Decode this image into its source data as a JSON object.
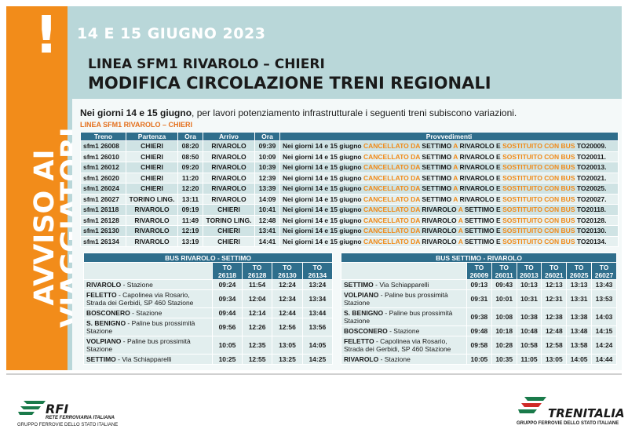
{
  "header": {
    "date_banner": "14 E 15 GIUGNO 2023",
    "line_title": "LINEA SFM1 RIVAROLO – CHIERI",
    "main_title": "MODIFICA CIRCOLAZIONE TRENI REGIONALI",
    "side_text_line1": "AVVISO AI",
    "side_text_line2": "VIAGGIATORI",
    "alert_mark": "!"
  },
  "intro": {
    "bold": "Nei giorni 14 e 15 giugno",
    "rest": ", per lavori potenziamento infrastrutturale i seguenti treni subiscono variazioni."
  },
  "section_label": "LINEA SFM1 RIVAROLO – CHIERI",
  "trains_table": {
    "headers": [
      "Treno",
      "Partenza",
      "Ora",
      "Arrivo",
      "Ora",
      "Provvedimenti"
    ],
    "rows": [
      {
        "treno": "sfm1 26008",
        "partenza": "CHIERI",
        "ora_p": "08:20",
        "arrivo": "RIVAROLO",
        "ora_a": "09:39",
        "p1": "Nei giorni 14 e 15 giugno ",
        "p2": "CANCELLATO DA ",
        "p3": "SETTIMO",
        "p4": " A ",
        "p5": "RIVAROLO",
        "p6": " E ",
        "p7": "SOSTITUITO CON BUS",
        "p8": " TO20009."
      },
      {
        "treno": "sfm1 26010",
        "partenza": "CHIERI",
        "ora_p": "08:50",
        "arrivo": "RIVAROLO",
        "ora_a": "10:09",
        "p1": "Nei giorni 14 e 15 giugno ",
        "p2": "CANCELLATO DA ",
        "p3": "SETTIMO",
        "p4": " A ",
        "p5": "RIVAROLO",
        "p6": " E ",
        "p7": "SOSTITUITO CON BUS",
        "p8": " TO20011."
      },
      {
        "treno": "sfm1 26012",
        "partenza": "CHIERI",
        "ora_p": "09:20",
        "arrivo": "RIVAROLO",
        "ora_a": "10:39",
        "p1": "Nei giorni 14 e 15 giugno ",
        "p2": "CANCELLATO DA ",
        "p3": "SETTIMO",
        "p4": " A ",
        "p5": "RIVAROLO",
        "p6": " E ",
        "p7": "SOSTITUITO CON BUS",
        "p8": " TO20013."
      },
      {
        "treno": "sfm1 26020",
        "partenza": "CHIERI",
        "ora_p": "11:20",
        "arrivo": "RIVAROLO",
        "ora_a": "12:39",
        "p1": "Nei giorni 14 e 15 giugno ",
        "p2": "CANCELLATO DA ",
        "p3": "SETTIMO",
        "p4": " A ",
        "p5": "RIVAROLO",
        "p6": " E ",
        "p7": "SOSTITUITO CON BUS",
        "p8": " TO20021."
      },
      {
        "treno": "sfm1 26024",
        "partenza": "CHIERI",
        "ora_p": "12:20",
        "arrivo": "RIVAROLO",
        "ora_a": "13:39",
        "p1": "Nei giorni 14 e 15 giugno ",
        "p2": "CANCELLATO DA ",
        "p3": "SETTIMO",
        "p4": " A ",
        "p5": "RIVAROLO",
        "p6": " E ",
        "p7": "SOSTITUITO CON BUS",
        "p8": " TO20025."
      },
      {
        "treno": "sfm1 26027",
        "partenza": "TORINO LING.",
        "ora_p": "13:11",
        "arrivo": "RIVAROLO",
        "ora_a": "14:09",
        "p1": "Nei giorni 14 e 15 giugno ",
        "p2": "CANCELLATO DA ",
        "p3": "SETTIMO",
        "p4": " A ",
        "p5": "RIVAROLO",
        "p6": " E ",
        "p7": "SOSTITUITO CON BUS",
        "p8": " TO20027."
      },
      {
        "treno": "sfm1 26118",
        "partenza": "RIVAROLO",
        "ora_p": "09:19",
        "arrivo": "CHIERI",
        "ora_a": "10:41",
        "p1": "Nei giorni 14 e 15 giugno ",
        "p2": "CANCELLATO DA ",
        "p3": "RIVAROLO",
        "p4": " A ",
        "p5": "SETTIMO",
        "p6": " E ",
        "p7": "SOSTITUITO CON BUS",
        "p8": " TO20118."
      },
      {
        "treno": "sfm1 26128",
        "partenza": "RIVAROLO",
        "ora_p": "11:49",
        "arrivo": "TORINO LING.",
        "ora_a": "12:48",
        "p1": "Nei giorni 14 e 15 giugno ",
        "p2": "CANCELLATO DA ",
        "p3": "RIVAROLO",
        "p4": " A ",
        "p5": "SETTIMO",
        "p6": " E ",
        "p7": "SOSTITUITO CON BUS",
        "p8": " TO20128."
      },
      {
        "treno": "sfm1 26130",
        "partenza": "RIVAROLO",
        "ora_p": "12:19",
        "arrivo": "CHIERI",
        "ora_a": "13:41",
        "p1": "Nei giorni 14 e 15 giugno ",
        "p2": "CANCELLATO DA ",
        "p3": "RIVAROLO",
        "p4": " A ",
        "p5": "SETTIMO",
        "p6": " E ",
        "p7": "SOSTITUITO CON BUS",
        "p8": " TO20130."
      },
      {
        "treno": "sfm1 26134",
        "partenza": "RIVAROLO",
        "ora_p": "13:19",
        "arrivo": "CHIERI",
        "ora_a": "14:41",
        "p1": "Nei giorni 14 e 15 giugno ",
        "p2": "CANCELLATO DA ",
        "p3": "RIVAROLO",
        "p4": " A ",
        "p5": "SETTIMO",
        "p6": " E ",
        "p7": "SOSTITUITO CON BUS",
        "p8": " TO20134."
      }
    ]
  },
  "bus_left": {
    "title": "BUS RIVAROLO - SETTIMO",
    "columns": [
      "TO 26118",
      "TO 26128",
      "TO 26130",
      "TO 26134"
    ],
    "rows": [
      {
        "stop": "RIVAROLO",
        "detail": " - Stazione",
        "times": [
          "09:24",
          "11:54",
          "12:24",
          "13:24"
        ]
      },
      {
        "stop": "FELETTO",
        "detail": " - Capolinea via Rosario, Strada dei Gerbidi, SP 460 Stazione",
        "times": [
          "09:34",
          "12:04",
          "12:34",
          "13:34"
        ]
      },
      {
        "stop": "BOSCONERO",
        "detail": " - Stazione",
        "times": [
          "09:44",
          "12:14",
          "12:44",
          "13:44"
        ]
      },
      {
        "stop": "S. BENIGNO",
        "detail": " - Paline bus prossimità Stazione",
        "times": [
          "09:56",
          "12:26",
          "12:56",
          "13:56"
        ]
      },
      {
        "stop": "VOLPIANO",
        "detail": " - Paline bus prossimità Stazione",
        "times": [
          "10:05",
          "12:35",
          "13:05",
          "14:05"
        ]
      },
      {
        "stop": "SETTIMO",
        "detail": " - Via Schiapparelli",
        "times": [
          "10:25",
          "12:55",
          "13:25",
          "14:25"
        ]
      }
    ]
  },
  "bus_right": {
    "title": "BUS SETTIMO - RIVAROLO",
    "columns": [
      "TO 26009",
      "TO 26011",
      "TO 26013",
      "TO 26021",
      "TO 26025",
      "TO 26027"
    ],
    "rows": [
      {
        "stop": "SETTIMO",
        "detail": " - Via Schiapparelli",
        "times": [
          "09:13",
          "09:43",
          "10:13",
          "12:13",
          "13:13",
          "13:43"
        ]
      },
      {
        "stop": "VOLPIANO",
        "detail": " - Paline bus prossimità Stazione",
        "times": [
          "09:31",
          "10:01",
          "10:31",
          "12:31",
          "13:31",
          "13:53"
        ]
      },
      {
        "stop": "S. BENIGNO",
        "detail": " - Paline bus prossimità Stazione",
        "times": [
          "09:38",
          "10:08",
          "10:38",
          "12:38",
          "13:38",
          "14:03"
        ]
      },
      {
        "stop": "BOSCONERO",
        "detail": " - Stazione",
        "times": [
          "09:48",
          "10:18",
          "10:48",
          "12:48",
          "13:48",
          "14:15"
        ]
      },
      {
        "stop": "FELETTO",
        "detail": " - Capolinea via Rosario, Strada dei Gerbidi, SP 460 Stazione",
        "times": [
          "09:58",
          "10:28",
          "10:58",
          "12:58",
          "13:58",
          "14:24"
        ]
      },
      {
        "stop": "RIVAROLO",
        "detail": " - Stazione",
        "times": [
          "10:05",
          "10:35",
          "11:05",
          "13:05",
          "14:05",
          "14:44"
        ]
      }
    ]
  },
  "footer": {
    "rfi_name": "RFI",
    "rfi_sub1": "RETE FERROVIARIA ITALIANA",
    "rfi_sub2": "GRUPPO FERROVIE DELLO STATO ITALIANE",
    "tren_name": "TRENITALIA",
    "tren_sub": "GRUPPO FERROVIE DELLO STATO ITALIANE"
  },
  "colors": {
    "accent_orange": "#f28c1a",
    "band_teal": "#b9d7d9",
    "header_blue": "#2f6e8c",
    "logo_green": "#1a7a4a"
  }
}
